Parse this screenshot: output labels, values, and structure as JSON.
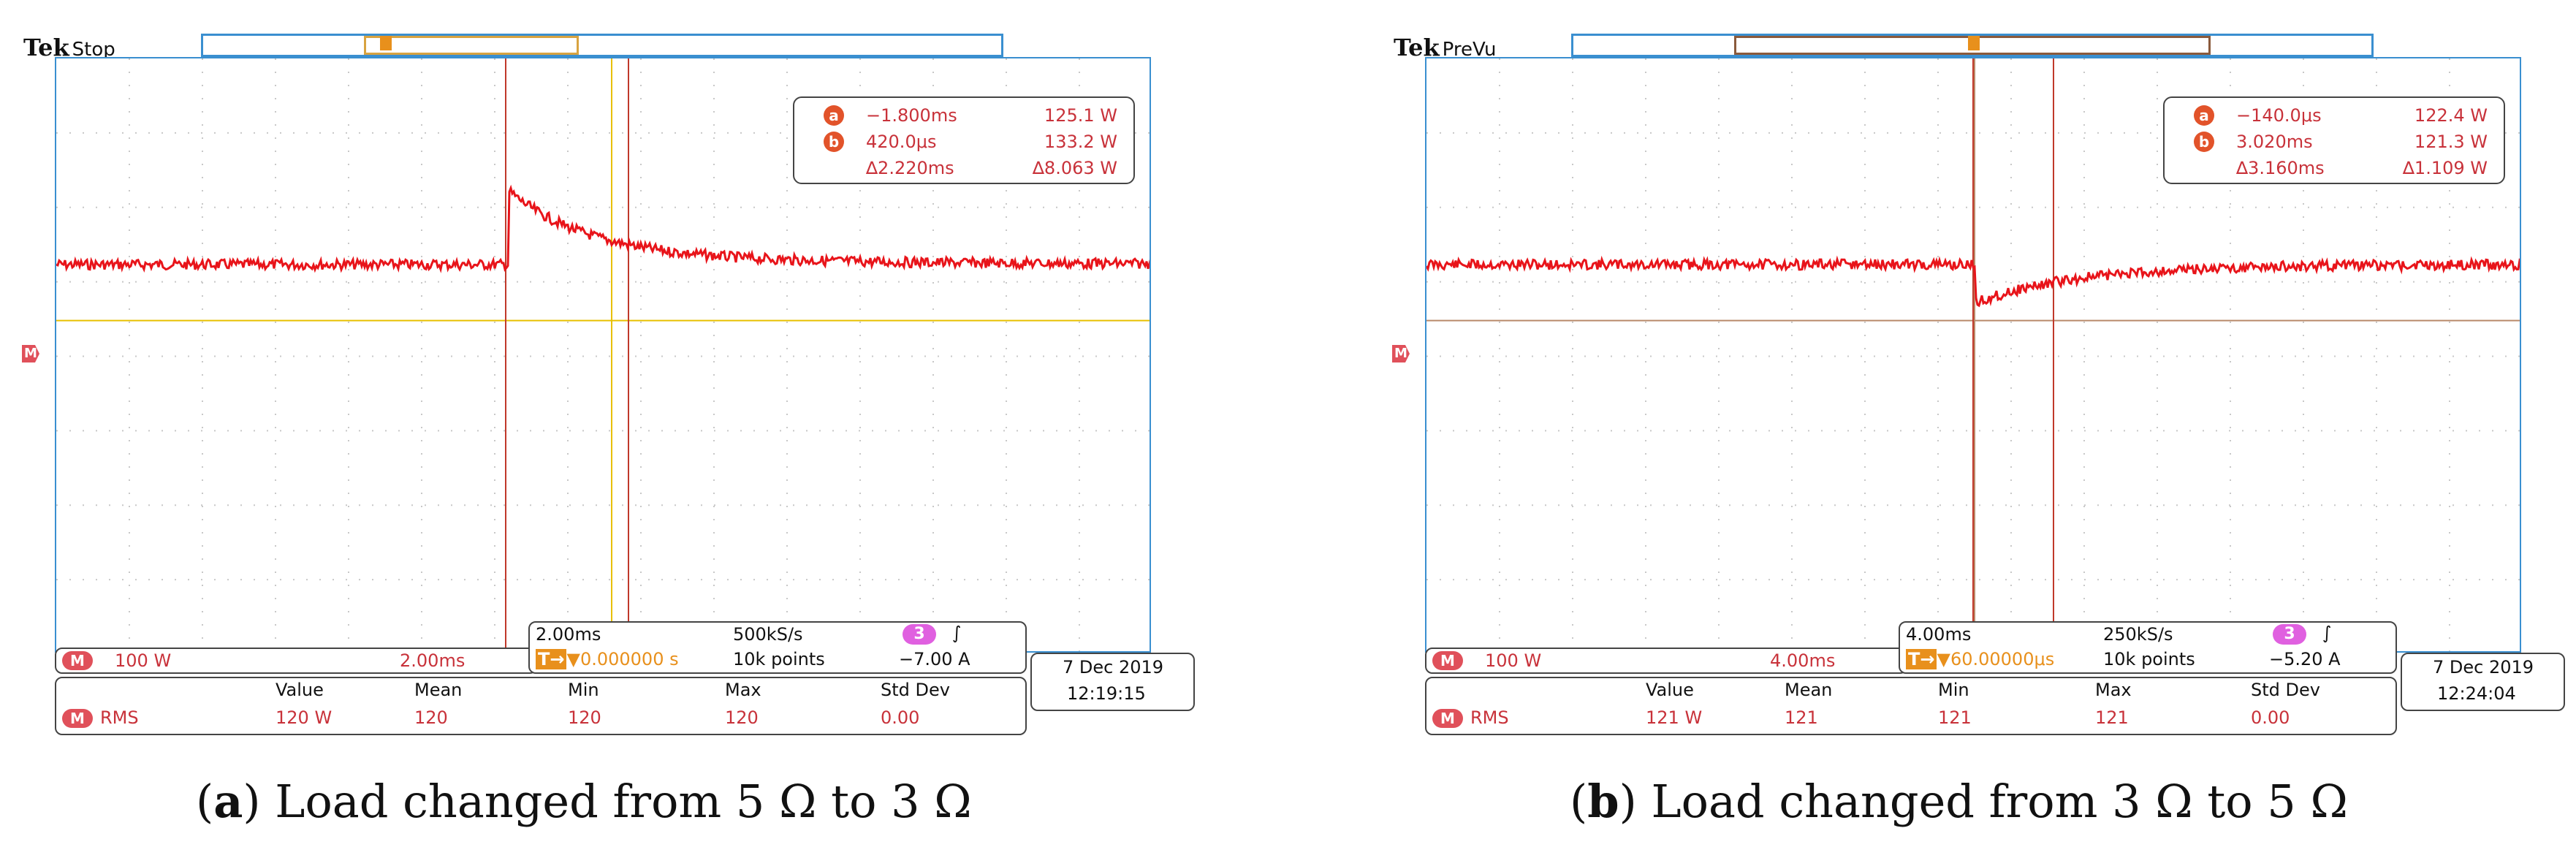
{
  "colors": {
    "trace": "#e8141a",
    "grid": "#c8c8c8",
    "frame": "#3a8fd0",
    "cursor": "#c0392b",
    "trigger": "#e8c000",
    "label": "#c8323a"
  },
  "scopes": [
    {
      "id": "a",
      "brand": "Tek",
      "mode": "Stop",
      "cursor_a_label": "a",
      "cursor_b_label": "b",
      "readout": {
        "a_time": "−1.800ms",
        "a_value": "125.1 W",
        "b_time": "420.0μs",
        "b_value": "133.2 W",
        "delta_time": "∆2.220ms",
        "delta_value": "∆8.063 W"
      },
      "ref_marker": "M",
      "math": {
        "badge": "M",
        "scale": "100 W",
        "time": "2.00ms"
      },
      "acq": {
        "timebase": "2.00ms",
        "rate": "500kS/s",
        "channel": "3",
        "slope": "∫",
        "trigger_pos": "▼0.000000 s",
        "points": "10k points",
        "level": "−7.00 A",
        "trigger_badge": "T→"
      },
      "date": "7 Dec  2019",
      "time": "12:19:15",
      "stats": {
        "badge": "M",
        "label": "RMS",
        "headers": [
          "Value",
          "Mean",
          "Min",
          "Max",
          "Std Dev"
        ],
        "values": [
          "120 W",
          "120",
          "120",
          "120",
          "0.00"
        ]
      },
      "caption_letter": "a",
      "caption_text": " Load changed from 5 Ω to 3 Ω"
    },
    {
      "id": "b",
      "brand": "Tek",
      "mode": "PreVu",
      "cursor_a_label": "a",
      "cursor_b_label": "b",
      "readout": {
        "a_time": "−140.0μs",
        "a_value": "122.4 W",
        "b_time": "3.020ms",
        "b_value": "121.3 W",
        "delta_time": "∆3.160ms",
        "delta_value": "∆1.109 W"
      },
      "ref_marker": "M",
      "math": {
        "badge": "M",
        "scale": "100 W",
        "time": "4.00ms"
      },
      "acq": {
        "timebase": "4.00ms",
        "rate": "250kS/s",
        "channel": "3",
        "slope": "∫",
        "trigger_pos": "▼60.00000μs",
        "points": "10k points",
        "level": "−5.20 A",
        "trigger_badge": "T→"
      },
      "date": "7 Dec  2019",
      "time": "12:24:04",
      "stats": {
        "badge": "M",
        "label": "RMS",
        "headers": [
          "Value",
          "Mean",
          "Min",
          "Max",
          "Std Dev"
        ],
        "values": [
          "121 W",
          "121",
          "121",
          "121",
          "0.00"
        ]
      },
      "caption_letter": "b",
      "caption_text": " Load changed from 3 Ω to 5 Ω"
    }
  ]
}
